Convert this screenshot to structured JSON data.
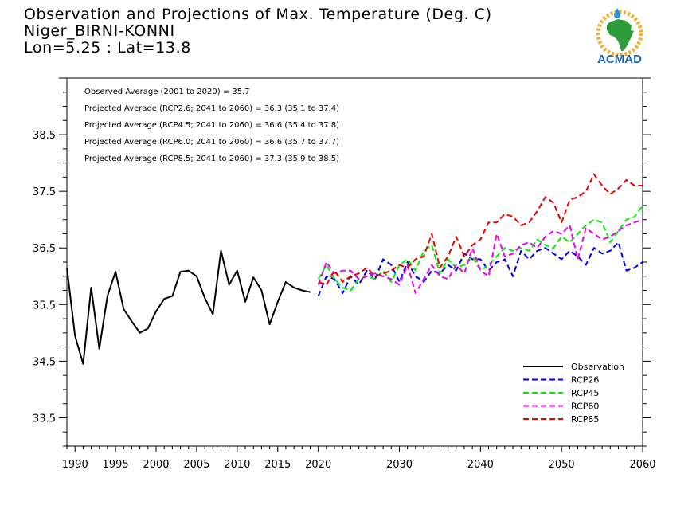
{
  "header": {
    "title_line1": "Observation and Projections of Max. Temperature (Deg. C)",
    "title_line2": "Niger_BIRNI-KONNI",
    "title_line3": "Lon=5.25 : Lat=13.8"
  },
  "logo": {
    "text": "ACMAD",
    "icon": "africa-map-logo"
  },
  "annotations": [
    "Observed Average (2001 to 2020) = 35.7",
    "Projected Average (RCP2.6; 2041 to 2060) = 36.3 (35.1 to 37.4)",
    "Projected Average (RCP4.5; 2041 to 2060) = 36.6 (35.4 to 37.8)",
    "Projected Average (RCP6.0; 2041 to 2060) = 36.6 (35.7 to 37.7)",
    "Projected Average (RCP8.5; 2041 to 2060) = 37.3 (35.9 to 38.5)"
  ],
  "colors": {
    "Observation": "#000000",
    "RCP26": "#0000ee",
    "RCP45": "#00ee00",
    "RCP60": "#ee00ee",
    "RCP85": "#ee0000"
  },
  "chart_data": {
    "type": "line",
    "title": "Observation and Projections of Max. Temperature (Deg. C)",
    "xlabel": "",
    "ylabel": "",
    "xlim": [
      1989,
      2060
    ],
    "ylim": [
      33.0,
      39.5
    ],
    "grid": false,
    "legend_position": "bottom-right",
    "x_ticks": [
      1990,
      1995,
      2000,
      2005,
      2010,
      2015,
      2020,
      2030,
      2040,
      2050,
      2060
    ],
    "y_ticks": [
      33.5,
      34.5,
      35.5,
      36.5,
      37.5,
      38.5
    ],
    "series": [
      {
        "name": "Observation",
        "style": "solid",
        "x": [
          1989,
          1990,
          1991,
          1992,
          1993,
          1994,
          1995,
          1996,
          1997,
          1998,
          1999,
          2000,
          2001,
          2002,
          2003,
          2004,
          2005,
          2006,
          2007,
          2008,
          2009,
          2010,
          2011,
          2012,
          2013,
          2014,
          2015,
          2016,
          2017,
          2018,
          2019
        ],
        "y": [
          36.15,
          34.95,
          34.45,
          35.8,
          34.72,
          35.65,
          36.08,
          35.42,
          35.2,
          35.0,
          35.08,
          35.38,
          35.6,
          35.65,
          36.08,
          36.1,
          36.0,
          35.62,
          35.33,
          36.45,
          35.85,
          36.1,
          35.55,
          35.98,
          35.75,
          35.15,
          35.55,
          35.9,
          35.8,
          35.75,
          35.72
        ]
      },
      {
        "name": "RCP26",
        "style": "dashed",
        "x": [
          2020,
          2021,
          2022,
          2023,
          2024,
          2025,
          2026,
          2027,
          2028,
          2029,
          2030,
          2031,
          2032,
          2033,
          2034,
          2035,
          2036,
          2037,
          2038,
          2039,
          2040,
          2041,
          2042,
          2043,
          2044,
          2045,
          2046,
          2047,
          2048,
          2049,
          2050,
          2051,
          2052,
          2053,
          2054,
          2055,
          2056,
          2057,
          2058,
          2059,
          2060
        ],
        "y": [
          35.65,
          36.0,
          35.95,
          35.7,
          36.0,
          35.85,
          36.1,
          35.95,
          36.3,
          36.2,
          35.9,
          36.25,
          36.0,
          35.9,
          36.1,
          36.05,
          36.2,
          36.1,
          36.4,
          36.3,
          36.3,
          36.1,
          36.25,
          36.3,
          36.0,
          36.45,
          36.3,
          36.45,
          36.5,
          36.4,
          36.3,
          36.45,
          36.35,
          36.2,
          36.5,
          36.4,
          36.45,
          36.6,
          36.1,
          36.15,
          36.25
        ]
      },
      {
        "name": "RCP45",
        "style": "dashed",
        "x": [
          2020,
          2021,
          2022,
          2023,
          2024,
          2025,
          2026,
          2027,
          2028,
          2029,
          2030,
          2031,
          2032,
          2033,
          2034,
          2035,
          2036,
          2037,
          2038,
          2039,
          2040,
          2041,
          2042,
          2043,
          2044,
          2045,
          2046,
          2047,
          2048,
          2049,
          2050,
          2051,
          2052,
          2053,
          2054,
          2055,
          2056,
          2057,
          2058,
          2059,
          2060
        ],
        "y": [
          35.95,
          36.2,
          35.95,
          35.8,
          35.75,
          35.95,
          36.0,
          35.95,
          36.1,
          35.9,
          36.2,
          36.3,
          36.1,
          36.45,
          36.55,
          36.05,
          36.3,
          36.15,
          36.2,
          36.35,
          36.1,
          36.2,
          36.35,
          36.5,
          36.45,
          36.5,
          36.45,
          36.65,
          36.55,
          36.5,
          36.7,
          36.6,
          36.75,
          36.9,
          37.0,
          36.95,
          36.6,
          36.8,
          37.0,
          37.05,
          37.25
        ]
      },
      {
        "name": "RCP60",
        "style": "dashed",
        "x": [
          2020,
          2021,
          2022,
          2023,
          2024,
          2025,
          2026,
          2027,
          2028,
          2029,
          2030,
          2031,
          2032,
          2033,
          2034,
          2035,
          2036,
          2037,
          2038,
          2039,
          2040,
          2041,
          2042,
          2043,
          2044,
          2045,
          2046,
          2047,
          2048,
          2049,
          2050,
          2051,
          2052,
          2053,
          2054,
          2055,
          2056,
          2057,
          2058,
          2059,
          2060
        ],
        "y": [
          35.85,
          36.25,
          36.05,
          36.1,
          36.1,
          35.95,
          36.0,
          36.05,
          36.0,
          35.95,
          35.85,
          36.2,
          35.7,
          35.95,
          36.2,
          36.0,
          35.95,
          36.2,
          36.05,
          36.5,
          36.1,
          36.0,
          36.75,
          36.35,
          36.4,
          36.55,
          36.6,
          36.5,
          36.7,
          36.8,
          36.75,
          36.9,
          36.3,
          36.85,
          36.75,
          36.65,
          36.7,
          36.8,
          36.9,
          36.95,
          37.0
        ]
      },
      {
        "name": "RCP85",
        "style": "dashed",
        "x": [
          2020,
          2021,
          2022,
          2023,
          2024,
          2025,
          2026,
          2027,
          2028,
          2029,
          2030,
          2031,
          2032,
          2033,
          2034,
          2035,
          2036,
          2037,
          2038,
          2039,
          2040,
          2041,
          2042,
          2043,
          2044,
          2045,
          2046,
          2047,
          2048,
          2049,
          2050,
          2051,
          2052,
          2053,
          2054,
          2055,
          2056,
          2057,
          2058,
          2059,
          2060
        ],
        "y": [
          35.9,
          35.85,
          36.1,
          35.9,
          36.0,
          36.05,
          36.15,
          36.0,
          36.05,
          36.1,
          36.2,
          36.15,
          36.3,
          36.35,
          36.75,
          36.15,
          36.35,
          36.7,
          36.35,
          36.55,
          36.65,
          36.95,
          36.95,
          37.1,
          37.05,
          36.9,
          36.95,
          37.15,
          37.4,
          37.3,
          36.95,
          37.35,
          37.4,
          37.5,
          37.8,
          37.6,
          37.45,
          37.55,
          37.7,
          37.6,
          37.6
        ]
      }
    ]
  }
}
